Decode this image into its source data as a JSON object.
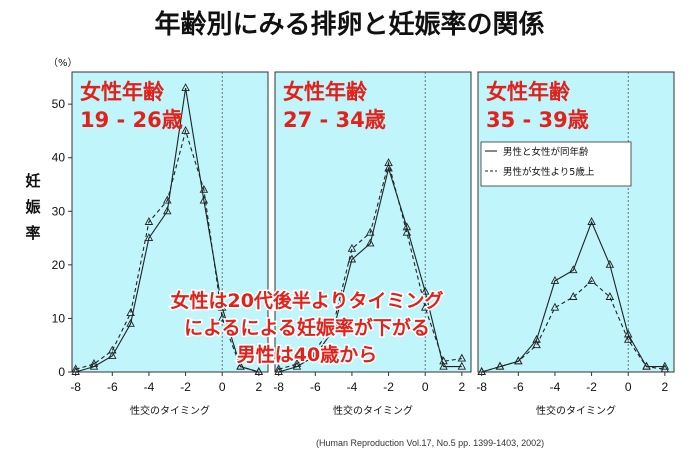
{
  "title": "年齢別にみる排卵と妊娠率の関係",
  "citation": "(Human Reproduction Vol.17, No.5 pp. 1399-1403, 2002)",
  "colors": {
    "panel_bg": "#bff5fb",
    "overlay_text": "#e3211b",
    "line": "#222222"
  },
  "chart_data": [
    {
      "type": "line",
      "panel_title": [
        "女性年齢",
        "19 - 26歳"
      ],
      "xlabel": "性交のタイミング",
      "ylabel": "妊娠率",
      "y_unit": "（%）",
      "x": [
        -8,
        -7,
        -6,
        -5,
        -4,
        -3,
        -2,
        -1,
        0,
        1,
        2
      ],
      "xticks": [
        -8,
        -6,
        -4,
        -2,
        0,
        2
      ],
      "yticks": [
        0,
        10,
        20,
        30,
        40,
        50
      ],
      "xlim": [
        -8.2,
        2.5
      ],
      "ylim": [
        0,
        56
      ],
      "series": [
        {
          "name": "男性と女性が同年齢",
          "style": "solid",
          "values": [
            0,
            1,
            3,
            9,
            25,
            30,
            53,
            32,
            12,
            1,
            0
          ]
        },
        {
          "name": "男性が女性より5歳上",
          "style": "dashed",
          "values": [
            0.5,
            1.5,
            4,
            11,
            28,
            32,
            45,
            34,
            10,
            1,
            0
          ]
        }
      ]
    },
    {
      "type": "line",
      "panel_title": [
        "女性年齢",
        "27 - 34歳"
      ],
      "xlabel": "性交のタイミング",
      "x": [
        -8,
        -7,
        -6,
        -5,
        -4,
        -3,
        -2,
        -1,
        0,
        1,
        2
      ],
      "xticks": [
        -8,
        -6,
        -4,
        -2,
        0,
        2
      ],
      "xlim": [
        -8.2,
        2.5
      ],
      "ylim": [
        0,
        56
      ],
      "series": [
        {
          "name": "男性と女性が同年齢",
          "style": "solid",
          "values": [
            0,
            1,
            3,
            8,
            21,
            24,
            38,
            27,
            15,
            1,
            1
          ]
        },
        {
          "name": "男性が女性より5歳上",
          "style": "dashed",
          "values": [
            0.5,
            1.5,
            4,
            9,
            23,
            26,
            39,
            26,
            12,
            2,
            2.5
          ]
        }
      ]
    },
    {
      "type": "line",
      "panel_title": [
        "女性年齢",
        "35 - 39歳"
      ],
      "xlabel": "性交のタイミング",
      "x": [
        -8,
        -7,
        -6,
        -5,
        -4,
        -3,
        -2,
        -1,
        0,
        1,
        2
      ],
      "xticks": [
        -8,
        -6,
        -4,
        -2,
        0,
        2
      ],
      "xlim": [
        -8.2,
        2.5
      ],
      "ylim": [
        0,
        56
      ],
      "legend": {
        "location": "top-right",
        "entries": [
          "男性と女性が同年齢",
          "男性が女性より5歳上"
        ]
      },
      "series": [
        {
          "name": "男性と女性が同年齢",
          "style": "solid",
          "values": [
            0,
            1,
            2,
            6,
            17,
            19,
            28,
            20,
            7,
            1,
            1
          ]
        },
        {
          "name": "男性が女性より5歳上",
          "style": "dashed",
          "values": [
            0,
            1,
            2,
            5,
            12,
            14,
            17,
            14,
            6,
            1,
            0.5
          ]
        }
      ]
    }
  ],
  "overlay_text": [
    "女性は20代後半よりタイミング",
    "によるによる妊娠率が下がる",
    "男性は40歳から"
  ]
}
